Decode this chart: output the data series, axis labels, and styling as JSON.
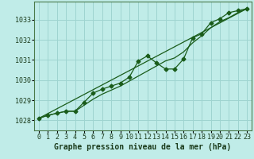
{
  "title": "Graphe pression niveau de la mer (hPa)",
  "bg_color": "#c0ece8",
  "grid_color": "#9ed4d0",
  "line_color": "#1a5c1a",
  "xlim": [
    -0.5,
    23.5
  ],
  "ylim": [
    1027.5,
    1033.9
  ],
  "xticks": [
    0,
    1,
    2,
    3,
    4,
    5,
    6,
    7,
    8,
    9,
    10,
    11,
    12,
    13,
    14,
    15,
    16,
    17,
    18,
    19,
    20,
    21,
    22,
    23
  ],
  "yticks": [
    1028,
    1029,
    1030,
    1031,
    1032,
    1033
  ],
  "series1_x": [
    0,
    1,
    2,
    3,
    4,
    5,
    6,
    7,
    8,
    9,
    10,
    11,
    12,
    13,
    14,
    15,
    16,
    17,
    18,
    19,
    20,
    21,
    22,
    23
  ],
  "series1_y": [
    1028.1,
    1028.25,
    1028.35,
    1028.45,
    1028.45,
    1028.9,
    1029.35,
    1029.55,
    1029.7,
    1029.85,
    1030.15,
    1030.95,
    1031.2,
    1030.85,
    1030.55,
    1030.55,
    1031.05,
    1032.1,
    1032.3,
    1032.85,
    1033.05,
    1033.35,
    1033.45,
    1033.55
  ],
  "series2_x": [
    0,
    1,
    2,
    3,
    4,
    5,
    6,
    7,
    8,
    9,
    10,
    11,
    12,
    13,
    14,
    15,
    16,
    17,
    18,
    19,
    20,
    21,
    22,
    23
  ],
  "series2_y": [
    1028.1,
    1028.25,
    1028.35,
    1028.45,
    1028.45,
    1028.75,
    1029.05,
    1029.3,
    1029.5,
    1029.7,
    1029.95,
    1030.2,
    1030.45,
    1030.7,
    1030.95,
    1031.1,
    1031.4,
    1031.85,
    1032.2,
    1032.6,
    1032.9,
    1033.1,
    1033.35,
    1033.55
  ],
  "series3_x": [
    0,
    23
  ],
  "series3_y": [
    1028.1,
    1033.55
  ],
  "marker": "D",
  "markersize": 2.5,
  "linewidth": 0.9,
  "xlabel_fontsize": 7,
  "tick_fontsize": 6
}
